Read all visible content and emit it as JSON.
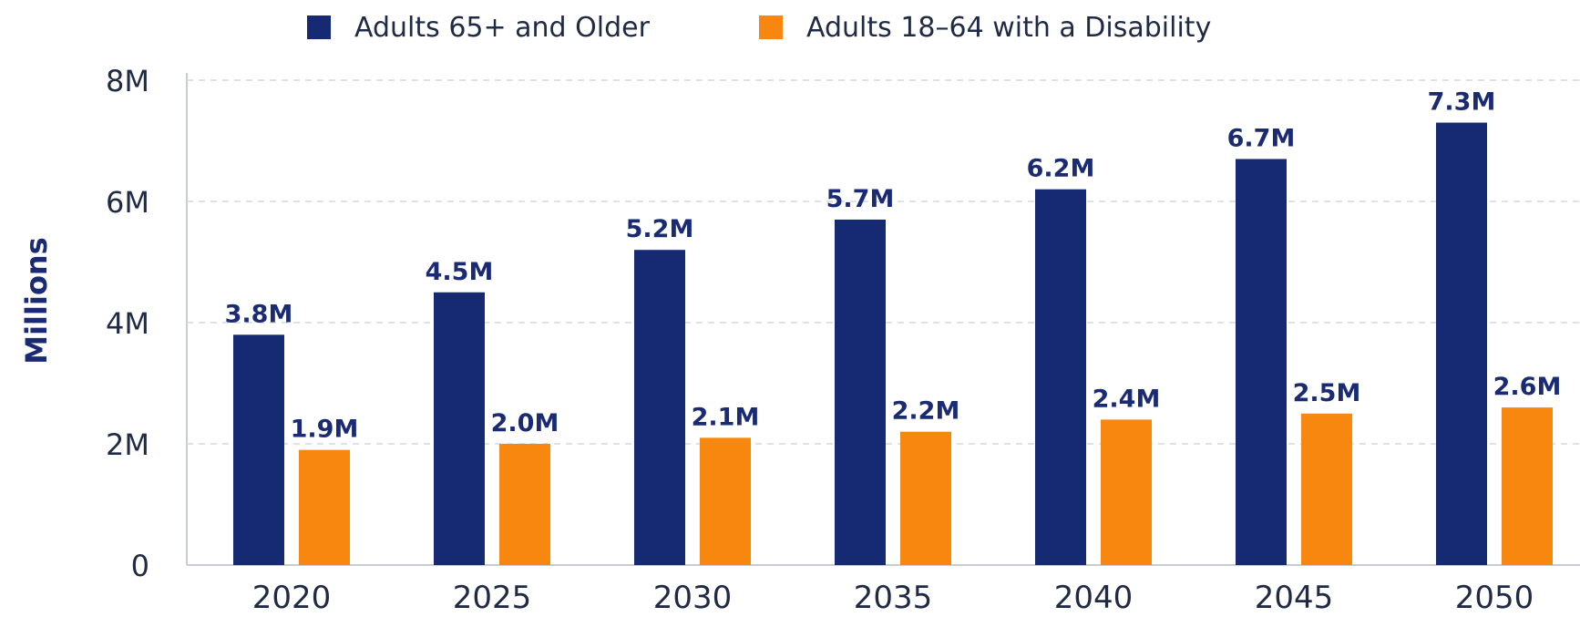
{
  "chart_data": {
    "type": "bar",
    "categories": [
      "2020",
      "2025",
      "2030",
      "2035",
      "2040",
      "2045",
      "2050"
    ],
    "series": [
      {
        "name": "Adults 65+ and Older",
        "color": "#152a73",
        "values": [
          3.8,
          4.5,
          5.2,
          5.7,
          6.2,
          6.7,
          7.3
        ],
        "labels": [
          "3.8M",
          "4.5M",
          "5.2M",
          "5.7M",
          "6.2M",
          "6.7M",
          "7.3M"
        ]
      },
      {
        "name": "Adults 18–64 with a Disability",
        "color": "#f7870f",
        "values": [
          1.9,
          2.0,
          2.1,
          2.2,
          2.4,
          2.5,
          2.6
        ],
        "labels": [
          "1.9M",
          "2.0M",
          "2.1M",
          "2.2M",
          "2.4M",
          "2.5M",
          "2.6M"
        ]
      }
    ],
    "ylabel": "Millions",
    "ylim": [
      0,
      8
    ],
    "yticks": [
      0,
      2,
      4,
      6,
      8
    ],
    "ytick_labels": [
      "0",
      "2M",
      "4M",
      "6M",
      "8M"
    ],
    "grid": true,
    "legend_position": "top"
  }
}
